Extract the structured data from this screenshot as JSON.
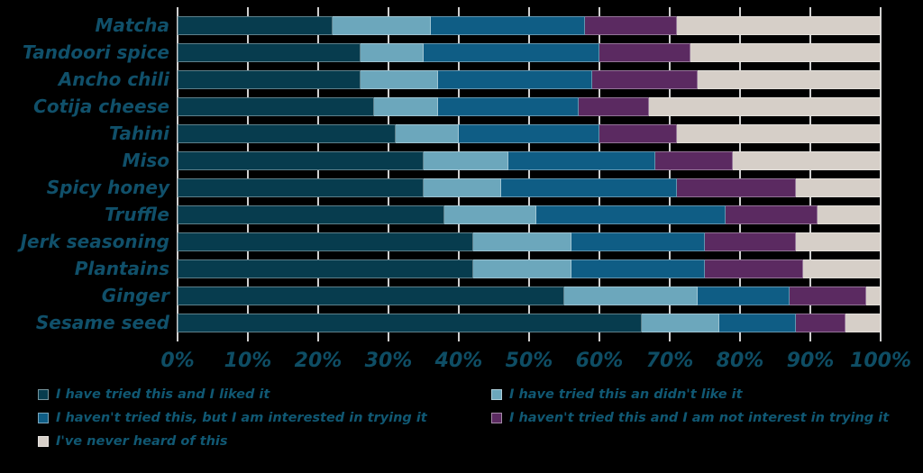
{
  "chart_data": {
    "type": "bar",
    "orientation": "horizontal",
    "stacked": true,
    "title": "",
    "xlabel": "",
    "ylabel": "",
    "grid": true,
    "legend_position": "bottom",
    "categories": [
      "Matcha",
      "Tandoori spice",
      "Ancho chili",
      "Cotija cheese",
      "Tahini",
      "Miso",
      "Spicy honey",
      "Truffle",
      "Jerk seasoning",
      "Plantains",
      "Ginger",
      "Sesame seed"
    ],
    "series": [
      {
        "name": "I have tried this and I liked it",
        "color": "#073C4E",
        "values": [
          22,
          26,
          26,
          28,
          31,
          35,
          35,
          38,
          42,
          42,
          55,
          66
        ]
      },
      {
        "name": "I have tried this an didn't like it",
        "color": "#6CA7BC",
        "values": [
          14,
          9,
          11,
          9,
          9,
          12,
          11,
          13,
          14,
          14,
          19,
          11
        ]
      },
      {
        "name": "I haven't tried this, but I am interested in trying it",
        "color": "#0F5D85",
        "values": [
          22,
          25,
          22,
          20,
          20,
          21,
          25,
          27,
          19,
          19,
          13,
          11
        ]
      },
      {
        "name": "I haven't tried this and I am not interest in trying it",
        "color": "#5B2A61",
        "values": [
          13,
          13,
          15,
          10,
          11,
          11,
          17,
          13,
          13,
          14,
          11,
          7
        ]
      },
      {
        "name": "I've never heard of this",
        "color": "#D6CFC8",
        "values": [
          29,
          27,
          26,
          33,
          29,
          21,
          12,
          9,
          12,
          11,
          2,
          5
        ]
      }
    ],
    "x_axis": {
      "min": 0,
      "max": 100,
      "tick_step": 10,
      "ticks": [
        "0%",
        "10%",
        "20%",
        "30%",
        "40%",
        "50%",
        "60%",
        "70%",
        "80%",
        "90%",
        "100%"
      ]
    },
    "colors": {
      "background": "#000000",
      "gridline": "#CFCFCF",
      "category_label_text": "#10506A",
      "axis_tick_text": "#0E4D64",
      "legend_text": "#105873"
    }
  }
}
